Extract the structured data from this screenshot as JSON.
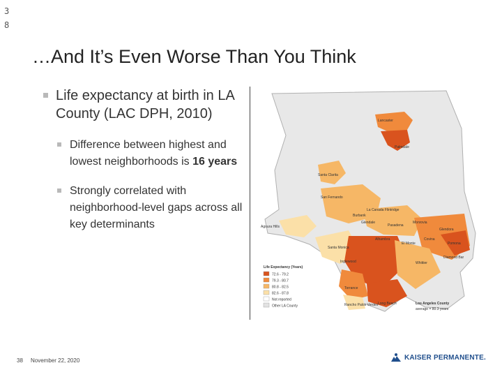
{
  "slide_number_top": "38",
  "title": "…And It’s Even Worse Than You Think",
  "bullets": {
    "main": "Life expectancy at birth in LA County (LAC DPH, 2010)",
    "sub1_pre": "Difference between highest and lowest neighborhoods is ",
    "sub1_bold": "16 years",
    "sub2": "Strongly correlated with neighborhood-level gaps across all key determinants"
  },
  "map": {
    "legend_title": "Life Expectancy (Years)",
    "legend_items": [
      {
        "label": "72.6 - 79.2",
        "color": "#d9531e"
      },
      {
        "label": "79.3 - 80.7",
        "color": "#f08a3c"
      },
      {
        "label": "80.8 - 82.5",
        "color": "#f6b766"
      },
      {
        "label": "82.6 - 87.8",
        "color": "#fbe0a8"
      },
      {
        "label": "Not reported",
        "color": "#ffffff"
      },
      {
        "label": "Other LA County",
        "color": "#e2e2e2"
      }
    ],
    "county_avg_title": "Los Angeles County",
    "county_avg_value": "average = 80.3 years",
    "places": [
      "Lancaster",
      "Palmdale",
      "Santa Clarita",
      "San Fernando",
      "La Canada Flintridge",
      "Burbank",
      "Glendale",
      "Agoura Hills",
      "Pasadena",
      "Monrovia",
      "Glendora",
      "Santa Monica",
      "Alhambra",
      "El Monte",
      "Covina",
      "Pomona",
      "Diamond Bar",
      "Whittier",
      "Inglewood",
      "Torrance",
      "Long Beach",
      "Rancho Palos Verdes"
    ]
  },
  "footer": {
    "page": "38",
    "date": "November 22, 2020",
    "logo_text": "KAISER PERMANENTE."
  }
}
